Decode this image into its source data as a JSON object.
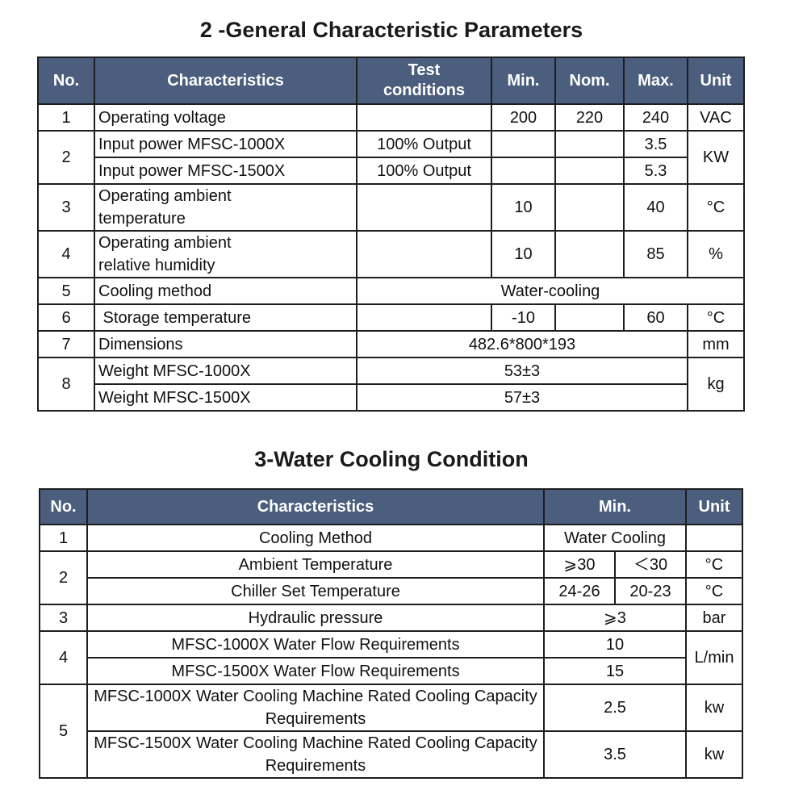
{
  "section2": {
    "title": "2 -General Characteristic Parameters",
    "headers": {
      "no": "No.",
      "characteristics": "Characteristics",
      "test_conditions": "Test conditions",
      "min": "Min.",
      "nom": "Nom.",
      "max": "Max.",
      "unit": "Unit"
    },
    "rows": {
      "r1": {
        "no": "1",
        "char": "Operating voltage",
        "test": "",
        "min": "200",
        "nom": "220",
        "max": "240",
        "unit": "VAC"
      },
      "r2a": {
        "no": "2",
        "char": "Input power MFSC-1000X",
        "test": "100% Output",
        "min": "",
        "nom": "",
        "max": "3.5",
        "unit": "KW"
      },
      "r2b": {
        "char": "Input power MFSC-1500X",
        "test": "100% Output",
        "min": "",
        "nom": "",
        "max": "5.3"
      },
      "r3": {
        "no": "3",
        "char": "Operating ambient temperature",
        "test": "",
        "min": "10",
        "nom": "",
        "max": "40",
        "unit": "°C"
      },
      "r4": {
        "no": "4",
        "char": "Operating ambient relative humidity",
        "test": "",
        "min": "10",
        "nom": "",
        "max": "85",
        "unit": "%"
      },
      "r5": {
        "no": "5",
        "char": "Cooling method",
        "value": "Water-cooling"
      },
      "r6": {
        "no": "6",
        "char": " Storage temperature",
        "test": "",
        "min": "-10",
        "nom": "",
        "max": "60",
        "unit": "°C"
      },
      "r7": {
        "no": "7",
        "char": "Dimensions",
        "value": "482.6*800*193",
        "unit": "mm"
      },
      "r8a": {
        "no": "8",
        "char": "Weight MFSC-1000X",
        "value": "53±3",
        "unit": "kg"
      },
      "r8b": {
        "char": "Weight MFSC-1500X",
        "value": "57±3"
      }
    }
  },
  "section3": {
    "title": "3-Water Cooling Condition",
    "headers": {
      "no": "No.",
      "characteristics": "Characteristics",
      "min": "Min.",
      "unit": "Unit"
    },
    "rows": {
      "r1": {
        "no": "1",
        "char": "Cooling Method",
        "value": "Water Cooling",
        "unit": ""
      },
      "r2a": {
        "no": "2",
        "char": "Ambient Temperature",
        "v1": "⩾30",
        "v2": "＜30",
        "unit": "°C"
      },
      "r2b": {
        "char": "Chiller Set Temperature",
        "v1": "24-26",
        "v2": "20-23",
        "unit": "°C"
      },
      "r3": {
        "no": "3",
        "char": "Hydraulic pressure",
        "value": "⩾3",
        "unit": "bar"
      },
      "r4a": {
        "no": "4",
        "char": "MFSC-1000X Water Flow Requirements",
        "value": "10",
        "unit": "L/min"
      },
      "r4b": {
        "char": "MFSC-1500X Water Flow Requirements",
        "value": "15"
      },
      "r5a": {
        "no": "5",
        "char": "MFSC-1000X Water Cooling Machine Rated Cooling Capacity Requirements",
        "value": "2.5",
        "unit": "kw"
      },
      "r5b": {
        "char": "MFSC-1500X Water Cooling Machine Rated Cooling Capacity Requirements",
        "value": "3.5",
        "unit": "kw"
      }
    }
  }
}
